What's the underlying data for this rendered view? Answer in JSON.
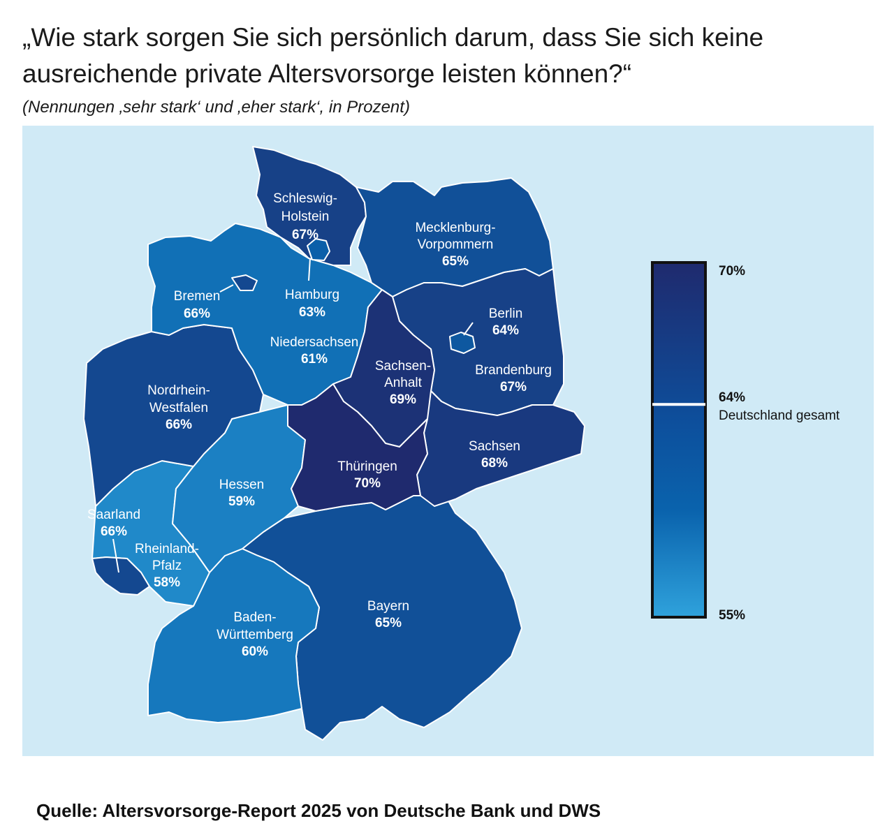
{
  "title": "„Wie stark sorgen Sie sich persönlich darum, dass Sie sich keine ausreichende private Altersvorsorge leisten können?“",
  "subtitle": "(Nennungen ‚sehr stark‘ und ‚eher stark‘, in Prozent)",
  "source": "Quelle: Altersvorsorge-Report 2025 von Deutsche Bank und DWS",
  "colors": {
    "background": "#d0eaf6",
    "scale_high": "#1f2a6e",
    "scale_mid": "#0a63ad",
    "scale_low": "#2fa2dc",
    "border": "#ffffff"
  },
  "scale": {
    "max_label": "70%",
    "max": 70,
    "min_label": "55%",
    "min": 55,
    "national_value": 64,
    "national_label": "64%",
    "national_caption": "Deutschland gesamt"
  },
  "states": {
    "schleswig_holstein": {
      "name1": "Schleswig-",
      "name2": "Holstein",
      "value": 67,
      "value_label": "67%"
    },
    "mecklenburg_vorpommern": {
      "name1": "Mecklenburg-",
      "name2": "Vorpommern",
      "value": 65,
      "value_label": "65%"
    },
    "hamburg": {
      "name1": "Hamburg",
      "value": 63,
      "value_label": "63%"
    },
    "bremen": {
      "name1": "Bremen",
      "value": 66,
      "value_label": "66%"
    },
    "niedersachsen": {
      "name1": "Niedersachsen",
      "value": 61,
      "value_label": "61%"
    },
    "berlin": {
      "name1": "Berlin",
      "value": 64,
      "value_label": "64%"
    },
    "brandenburg": {
      "name1": "Brandenburg",
      "value": 67,
      "value_label": "67%"
    },
    "sachsen_anhalt": {
      "name1": "Sachsen-",
      "name2": "Anhalt",
      "value": 69,
      "value_label": "69%"
    },
    "nordrhein_westfalen": {
      "name1": "Nordrhein-",
      "name2": "Westfalen",
      "value": 66,
      "value_label": "66%"
    },
    "sachsen": {
      "name1": "Sachsen",
      "value": 68,
      "value_label": "68%"
    },
    "thueringen": {
      "name1": "Thüringen",
      "value": 70,
      "value_label": "70%"
    },
    "hessen": {
      "name1": "Hessen",
      "value": 59,
      "value_label": "59%"
    },
    "saarland": {
      "name1": "Saarland",
      "value": 66,
      "value_label": "66%"
    },
    "rheinland_pfalz": {
      "name1": "Rheinland-",
      "name2": "Pfalz",
      "value": 58,
      "value_label": "58%"
    },
    "baden_wuerttemberg": {
      "name1": "Baden-",
      "name2": "Württemberg",
      "value": 60,
      "value_label": "60%"
    },
    "bayern": {
      "name1": "Bayern",
      "value": 65,
      "value_label": "65%"
    }
  }
}
